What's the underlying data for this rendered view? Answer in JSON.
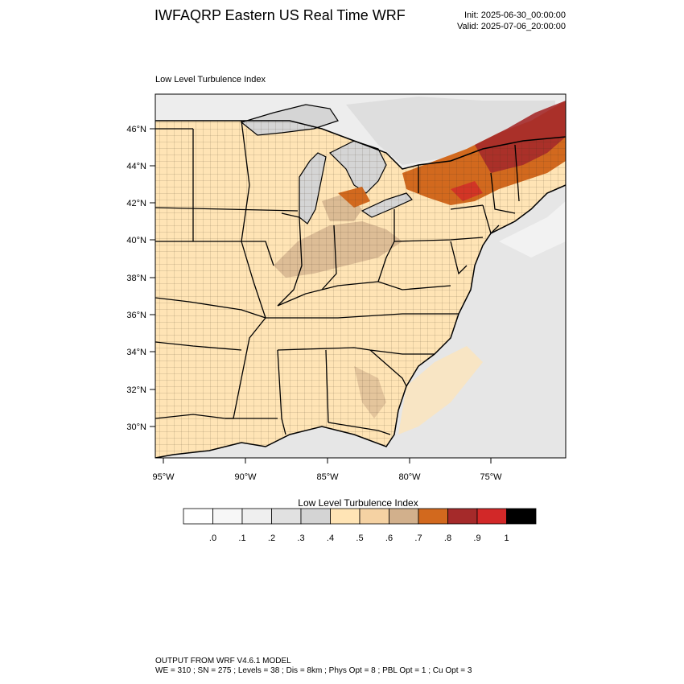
{
  "title": "IWFAQRP Eastern US Real Time WRF",
  "init": "Init: 2025-06-30_00:00:00",
  "valid": "Valid: 2025-07-06_20:00:00",
  "panel_label": "Low Level Turbulence Index",
  "map": {
    "lat_labels": [
      "46°N",
      "44°N",
      "42°N",
      "40°N",
      "38°N",
      "36°N",
      "34°N",
      "32°N",
      "30°N"
    ],
    "lon_labels": [
      "95°W",
      "90°W",
      "85°W",
      "80°W",
      "75°W"
    ]
  },
  "colorbar": {
    "title": "Low Level Turbulence Index",
    "tick_labels": [
      ".0",
      ".1",
      ".2",
      ".3",
      ".4",
      ".5",
      ".6",
      ".7",
      ".8",
      ".9",
      "1"
    ],
    "colors": [
      "#ffffff",
      "#f7f7f7",
      "#efefef",
      "#e1e1e1",
      "#d4d4d4",
      "#ffe4b5",
      "#f5d2a3",
      "#d2b08c",
      "#d2691e",
      "#a52a2a",
      "#d22828",
      "#000000"
    ]
  },
  "footer": {
    "line1": "OUTPUT FROM WRF V4.6.1 MODEL",
    "line2": "WE = 310 ; SN = 275 ; Levels = 38 ; Dis = 8km ; Phys Opt = 8 ; PBL Opt = 1 ; Cu Opt = 3"
  }
}
